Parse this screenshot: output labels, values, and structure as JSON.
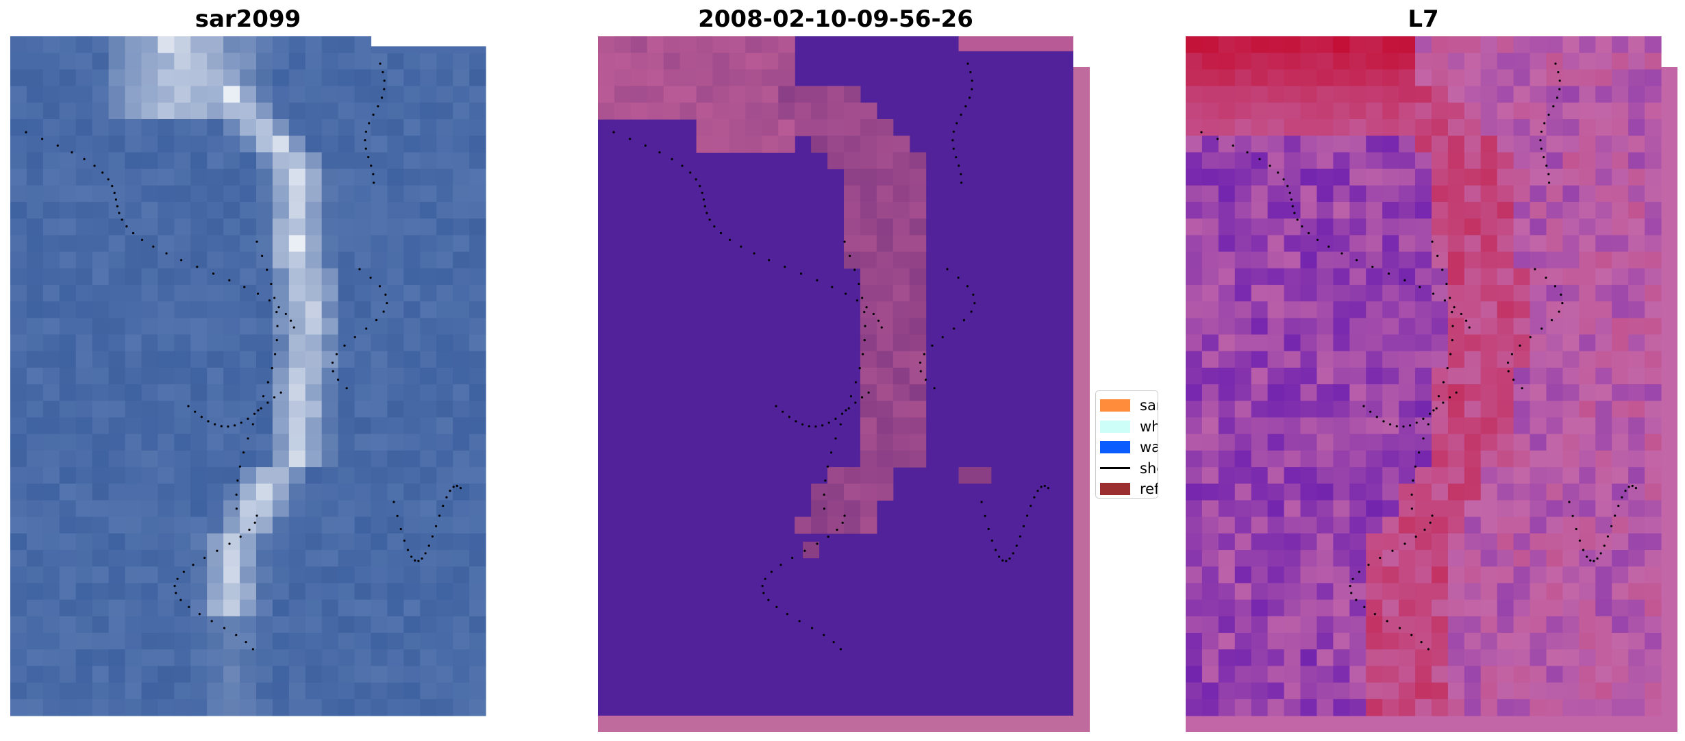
{
  "panels": [
    {
      "title": "sar2099"
    },
    {
      "title": "2008-02-10-09-56-26"
    },
    {
      "title": "L7"
    }
  ],
  "legend": {
    "items": [
      {
        "label": "sand",
        "color": "#ff8c3a",
        "kind": "patch"
      },
      {
        "label": "whitewater",
        "color": "#cdfff8",
        "kind": "patch"
      },
      {
        "label": "water",
        "color": "#0a5cff",
        "kind": "patch"
      },
      {
        "label": "shoreline",
        "color": "#000000",
        "kind": "line"
      },
      {
        "label": "reference shoreline",
        "color": "#9b2e2e",
        "kind": "patch"
      }
    ]
  },
  "colors": {
    "classified_background": "#52229a",
    "classified_overlay": "#b85a95",
    "classified_border": "#c06b9d",
    "ndwi_low": "#5a10b0",
    "ndwi_mid": "#c266a8",
    "ndwi_high": "#c41036",
    "rgb_water": "#3f62a0",
    "rgb_bright": "#ffffff"
  }
}
